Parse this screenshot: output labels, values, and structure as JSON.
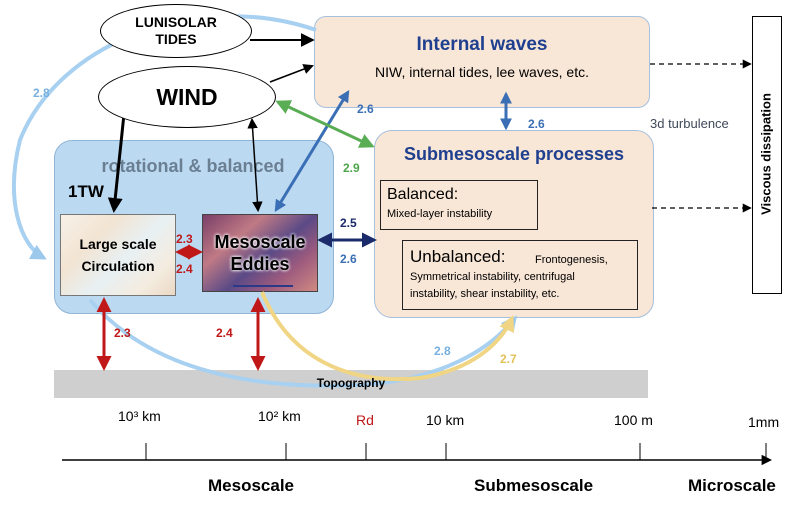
{
  "nodes": {
    "lunisolar_tides": "LUNISOLAR\nTIDES",
    "wind": "WIND",
    "rotational_balanced": "rotational & balanced",
    "one_tw": "1TW",
    "large_scale_circulation": "Large scale\nCirculation",
    "mesoscale_eddies": "Mesoscale\nEddies",
    "internal_waves": {
      "title": "Internal waves",
      "subtitle": "NIW, internal tides, lee waves, etc."
    },
    "submesoscale": {
      "title": "Submesoscale processes",
      "balanced_title": "Balanced:",
      "balanced_sub": "Mixed-layer instability",
      "unbalanced_title": "Unbalanced:",
      "unbalanced_line1": "Frontogenesis,",
      "unbalanced_line2": "Symmetrical instability, centrifugal",
      "unbalanced_line3": "instability, shear instability, etc."
    },
    "viscous_dissipation": "Viscous dissipation",
    "turbulence": "3d turbulence",
    "topography": "Topography"
  },
  "links": {
    "wind_to_bg": "2.8",
    "iw_sub": "2.6",
    "sub_iw_side": "2.6",
    "wind_sub": "2.9",
    "meso_sub_top": "2.5",
    "meso_sub_bottom": "2.6",
    "large_meso_top": "2.3",
    "large_meso_bottom": "2.4",
    "large_topo": "2.3",
    "meso_topo": "2.4",
    "topo_sub_blue": "2.8",
    "topo_sub_yellow": "2.7"
  },
  "axis": {
    "ticks": [
      "10³ km",
      "10² km",
      "Rd",
      "10 km",
      "100 m",
      "1mm"
    ],
    "regimes": [
      "Mesoscale",
      "Submesoscale",
      "Microscale"
    ]
  },
  "colors": {
    "red": "#c01818",
    "light_blue": "#9cc8ec",
    "blue": "#3a6fb5",
    "navy": "#1a2a6a",
    "green": "#5aac55",
    "yellow": "#f0d584"
  }
}
